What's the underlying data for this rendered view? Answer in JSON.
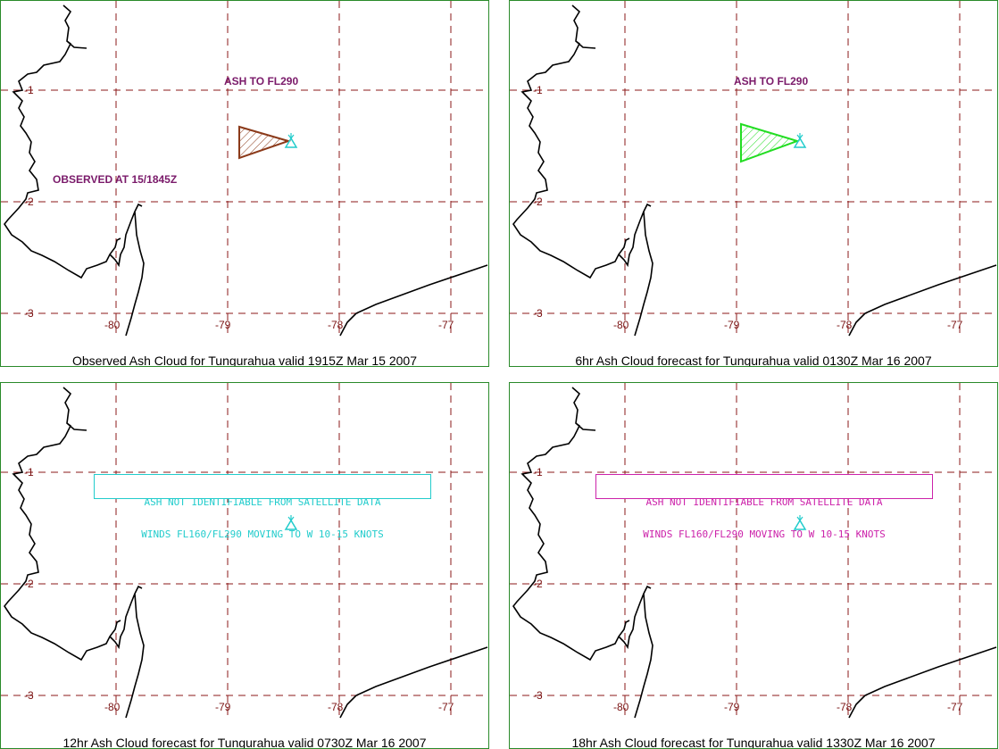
{
  "panels": [
    {
      "caption": "Observed Ash Cloud for Tungurahua valid 1915Z Mar 15 2007",
      "ash_label": "ASH TO FL290",
      "observed_label": "OBSERVED AT 15/1845Z",
      "polygon_color": "#8b3a1a"
    },
    {
      "caption": "6hr Ash Cloud forecast for Tungurahua valid 0130Z Mar 16 2007",
      "ash_label": "ASH TO FL290",
      "polygon_color": "#22dd22"
    },
    {
      "caption": "12hr Ash Cloud forecast for Tungurahua valid 0730Z Mar 16 2007",
      "note_line1": "ASH NOT IDENTIFIABLE FROM SATELLITE DATA",
      "note_line2": "WINDS FL160/FL290 MOVING TO W 10-15 KNOTS",
      "note_color": "#22cccc"
    },
    {
      "caption": "18hr Ash Cloud forecast for Tungurahua valid 1330Z Mar 16 2007",
      "note_line1": "ASH NOT IDENTIFIABLE FROM SATELLITE DATA",
      "note_line2": "WINDS FL160/FL290 MOVING TO W 10-15 KNOTS",
      "note_color": "#cc22aa"
    }
  ],
  "axes": {
    "lon_labels": [
      "-80",
      "-79",
      "-78",
      "-77"
    ],
    "lat_labels": [
      "-1",
      "-2",
      "-3"
    ]
  },
  "volcano_icon": "volcano-icon",
  "colors": {
    "grid": "#8b1a1a",
    "coast": "#000000",
    "volcano": "#22cccc",
    "frame": "#2a8a2a"
  }
}
